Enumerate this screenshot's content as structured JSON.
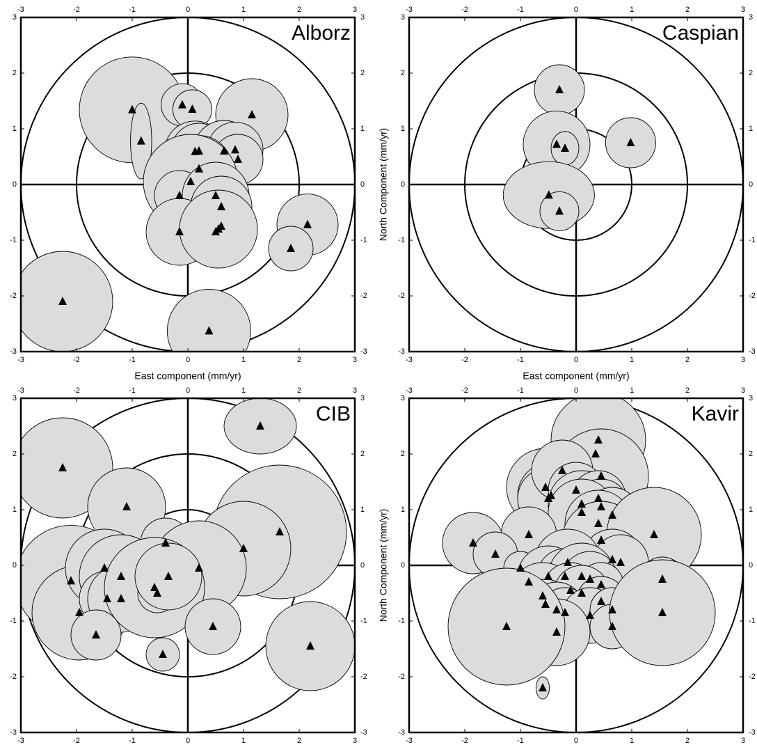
{
  "chart_data": [
    {
      "type": "scatter",
      "title": "Alborz",
      "xlabel": "East component (mm/yr)",
      "xlim": [
        -3,
        3
      ],
      "ylim": [
        -3,
        3
      ],
      "xticks": [
        -3,
        -2,
        -1,
        0,
        1,
        2,
        3
      ],
      "yticks": [
        -3,
        -2,
        -1,
        0,
        1,
        2,
        3
      ],
      "rings": [
        2,
        3
      ],
      "zero_lines": true,
      "marker_color": "#000000",
      "ellipse_color": "#dcdcde",
      "series": [
        {
          "x": [
            -1.0,
            -0.84,
            -0.1,
            0.08,
            1.15,
            0.13,
            0.2,
            0.65,
            0.85,
            0.9,
            0.2,
            0.05,
            -0.15,
            0.5,
            0.6,
            -0.15,
            0.5,
            0.6,
            0.55,
            2.15,
            1.85,
            -2.25,
            0.38
          ],
          "y": [
            1.34,
            0.78,
            1.43,
            1.35,
            1.25,
            0.59,
            0.6,
            0.6,
            0.62,
            0.45,
            0.28,
            0.05,
            -0.2,
            -0.2,
            -0.4,
            -0.85,
            -0.85,
            -0.75,
            -0.8,
            -0.72,
            -1.15,
            -2.1,
            -2.63
          ],
          "ex": [
            0.95,
            0.19,
            0.38,
            0.35,
            0.65,
            0.55,
            0.5,
            0.55,
            0.5,
            0.45,
            0.6,
            0.85,
            0.45,
            0.6,
            0.55,
            0.6,
            0.5,
            0.5,
            0.7,
            0.55,
            0.4,
            0.9,
            0.75
          ],
          "ey": [
            0.95,
            0.68,
            0.38,
            0.35,
            0.65,
            0.55,
            0.5,
            0.55,
            0.5,
            0.45,
            0.6,
            0.85,
            0.45,
            0.6,
            0.55,
            0.6,
            0.5,
            0.5,
            0.7,
            0.55,
            0.4,
            0.9,
            0.75
          ]
        }
      ]
    },
    {
      "type": "scatter",
      "title": "Caspian",
      "xlabel": "East component (mm/yr)",
      "ylabel": "North Component (mm/yr)",
      "xlim": [
        -3,
        3
      ],
      "ylim": [
        -3,
        3
      ],
      "xticks": [
        -3,
        -2,
        -1,
        0,
        1,
        2,
        3
      ],
      "yticks": [
        -3,
        -2,
        -1,
        0,
        1,
        2,
        3
      ],
      "rings": [
        1,
        2,
        3
      ],
      "zero_lines": true,
      "marker_color": "#000000",
      "ellipse_color": "#dcdcde",
      "series": [
        {
          "x": [
            -0.3,
            -0.35,
            -0.2,
            0.98,
            -0.49,
            -0.3
          ],
          "y": [
            1.7,
            0.72,
            0.65,
            0.75,
            -0.19,
            -0.48
          ],
          "ex": [
            0.45,
            0.6,
            0.25,
            0.45,
            0.82,
            0.35
          ],
          "ey": [
            0.45,
            0.6,
            0.3,
            0.45,
            0.6,
            0.35
          ]
        }
      ]
    },
    {
      "type": "scatter",
      "title": "CIB",
      "xlim": [
        -3,
        3
      ],
      "ylim": [
        -3,
        3
      ],
      "xticks": [
        -3,
        -2,
        -1,
        0,
        1,
        2,
        3
      ],
      "yticks": [
        -3,
        -2,
        -1,
        0,
        1,
        2,
        3
      ],
      "rings": [
        1,
        2,
        3
      ],
      "zero_lines": true,
      "marker_color": "#000000",
      "ellipse_color": "#dcdcde",
      "series": [
        {
          "x": [
            -2.25,
            1.3,
            -1.1,
            1.65,
            1.0,
            -0.4,
            0.2,
            -2.1,
            -1.95,
            -1.5,
            -1.2,
            -1.45,
            -1.2,
            -0.6,
            -0.55,
            -0.35,
            -1.65,
            0.45,
            -0.45,
            2.2
          ],
          "y": [
            1.75,
            2.5,
            1.05,
            0.6,
            0.3,
            0.4,
            -0.05,
            -0.28,
            -0.85,
            -0.05,
            -0.2,
            -0.6,
            -0.6,
            -0.4,
            -0.5,
            -0.2,
            -1.25,
            -1.1,
            -1.6,
            -1.45
          ],
          "ex": [
            0.9,
            0.65,
            0.7,
            1.2,
            0.85,
            0.45,
            0.85,
            1.0,
            0.85,
            0.7,
            0.75,
            0.5,
            0.6,
            0.9,
            0.35,
            0.6,
            0.45,
            0.5,
            0.3,
            0.8
          ],
          "ey": [
            0.9,
            0.5,
            0.7,
            1.2,
            0.85,
            0.45,
            0.85,
            1.0,
            0.85,
            0.7,
            0.75,
            0.5,
            0.6,
            0.9,
            0.35,
            0.6,
            0.45,
            0.5,
            0.3,
            0.8
          ]
        }
      ]
    },
    {
      "type": "scatter",
      "title": "Kavir",
      "ylabel": "North Component (mm/yr)",
      "xlim": [
        -3,
        3
      ],
      "ylim": [
        -3,
        3
      ],
      "xticks": [
        -3,
        -2,
        -1,
        0,
        1,
        2,
        3
      ],
      "yticks": [
        -3,
        -2,
        -1,
        0,
        1,
        2,
        3
      ],
      "rings": [
        3
      ],
      "zero_lines": true,
      "marker_color": "#000000",
      "ellipse_color": "#dcdcde",
      "series": [
        {
          "x": [
            0.4,
            0.35,
            0.45,
            -0.55,
            -0.45,
            -0.5,
            -0.25,
            0.0,
            0.1,
            0.4,
            0.45,
            0.1,
            0.65,
            0.4,
            0.45,
            -0.85,
            -1.85,
            -1.45,
            1.4,
            1.55,
            -1.0,
            -0.85,
            0.65,
            0.8,
            -0.15,
            -0.5,
            -0.2,
            0.1,
            0.25,
            0.45,
            -0.6,
            -0.1,
            0.1,
            0.45,
            -0.55,
            -0.35,
            -0.2,
            0.25,
            0.65,
            0.65,
            -0.35,
            -1.25,
            1.55,
            -0.6
          ],
          "y": [
            2.25,
            2.0,
            1.6,
            1.4,
            1.25,
            1.2,
            1.7,
            1.35,
            1.1,
            1.2,
            1.05,
            0.95,
            0.9,
            0.75,
            0.45,
            0.55,
            0.4,
            0.2,
            0.55,
            -0.25,
            -0.05,
            -0.3,
            0.1,
            0.05,
            0.05,
            -0.2,
            -0.2,
            -0.2,
            -0.25,
            -0.35,
            -0.55,
            -0.45,
            -0.5,
            -0.65,
            -0.7,
            -0.8,
            -0.85,
            -0.9,
            -0.8,
            -1.1,
            -1.2,
            -1.1,
            -0.85,
            -2.2
          ],
          "ex": [
            0.85,
            0.3,
            0.85,
            0.7,
            0.6,
            0.55,
            0.55,
            0.5,
            0.6,
            0.5,
            0.5,
            0.6,
            0.5,
            0.6,
            0.7,
            0.5,
            0.55,
            0.4,
            0.85,
            0.4,
            0.3,
            0.25,
            0.55,
            0.5,
            0.6,
            0.55,
            0.5,
            0.6,
            0.5,
            0.4,
            0.6,
            0.5,
            0.5,
            0.45,
            0.45,
            0.5,
            0.45,
            0.5,
            0.4,
            0.4,
            0.6,
            1.05,
            0.95,
            0.12
          ],
          "ey": [
            0.85,
            0.3,
            0.85,
            0.7,
            0.6,
            0.55,
            0.55,
            0.5,
            0.6,
            0.5,
            0.5,
            0.6,
            0.5,
            0.6,
            0.7,
            0.5,
            0.55,
            0.4,
            0.85,
            0.4,
            0.3,
            0.25,
            0.55,
            0.5,
            0.6,
            0.55,
            0.5,
            0.6,
            0.5,
            0.4,
            0.6,
            0.5,
            0.5,
            0.45,
            0.45,
            0.5,
            0.45,
            0.5,
            0.4,
            0.4,
            0.6,
            1.05,
            0.95,
            0.2
          ]
        }
      ]
    }
  ]
}
